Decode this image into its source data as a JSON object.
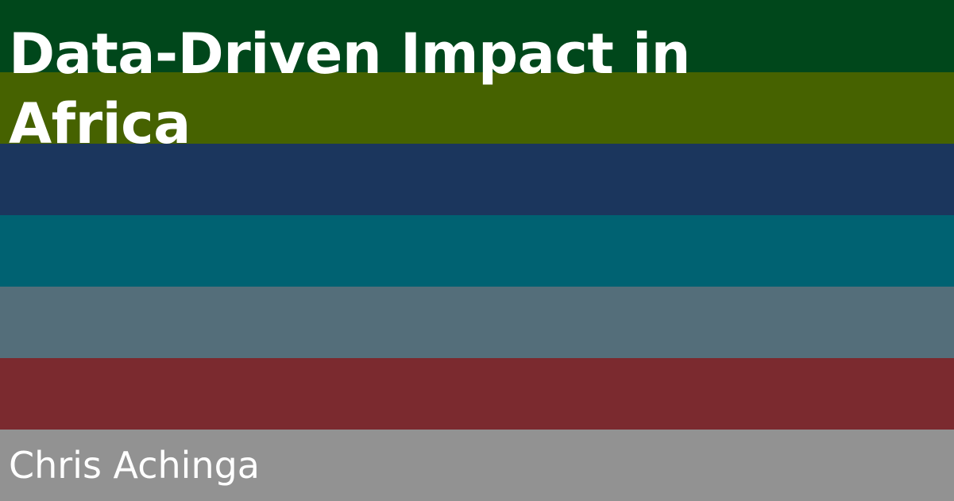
{
  "title": "Data-Driven Impact in Africa",
  "author": "Chris Achinga",
  "colors": {
    "stripes": [
      "#00471b",
      "#466200",
      "#1b365d",
      "#006272",
      "#546e7a",
      "#7b2a2f",
      "#929292"
    ],
    "text": "#ffffff"
  }
}
